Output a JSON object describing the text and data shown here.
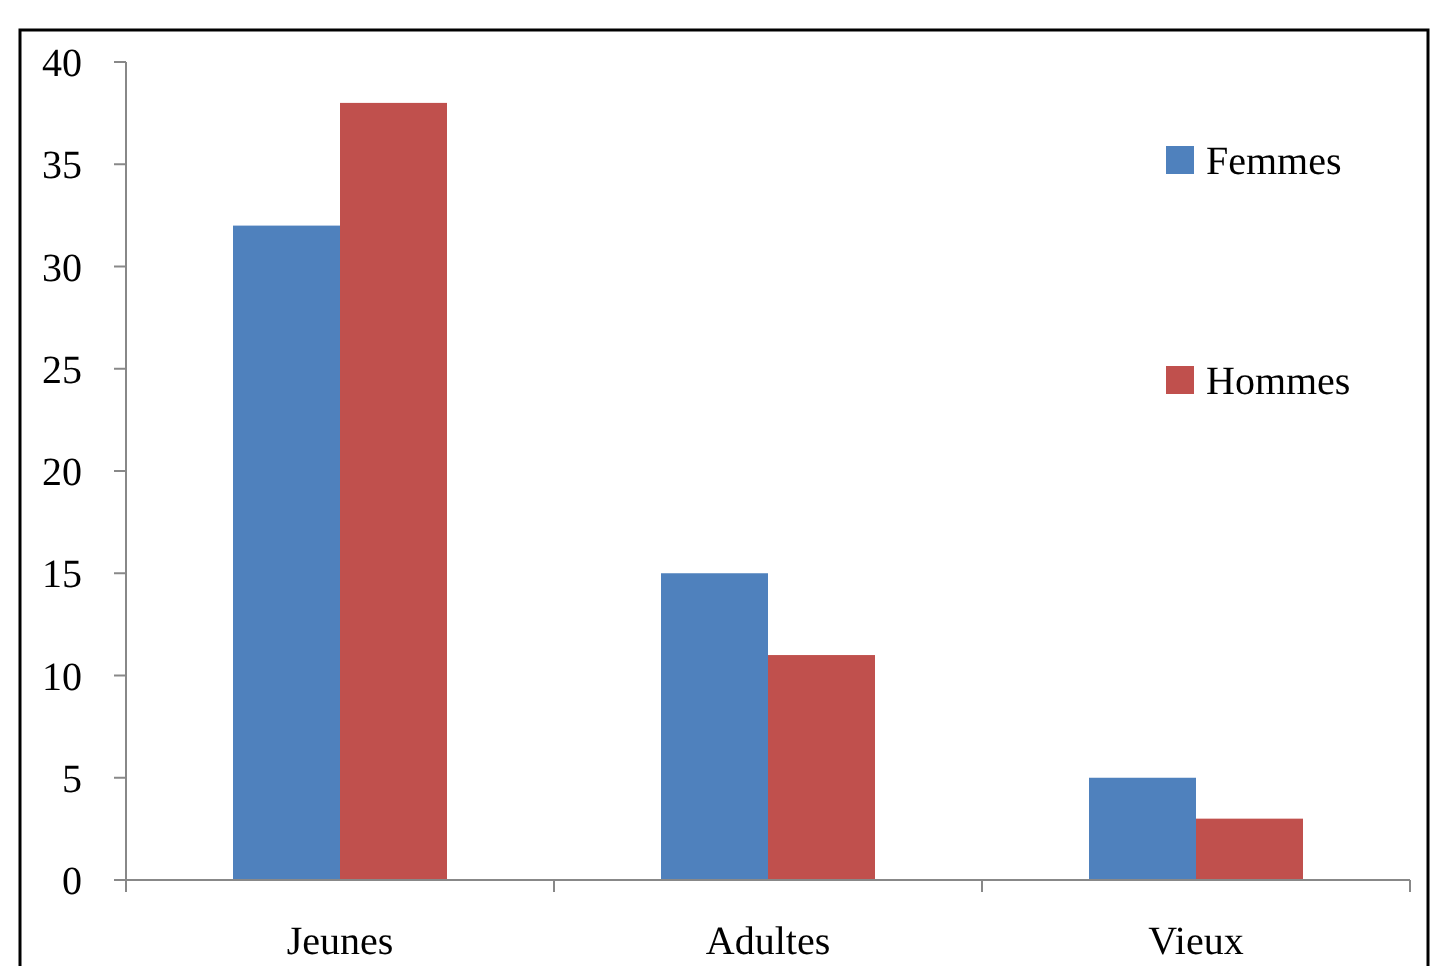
{
  "chart_data": {
    "type": "bar",
    "categories": [
      "Jeunes",
      "Adultes",
      "Vieux"
    ],
    "series": [
      {
        "name": "Femmes",
        "color": "#4f81bd",
        "values": [
          32,
          15,
          5
        ]
      },
      {
        "name": "Hommes",
        "color": "#c0504d",
        "values": [
          38,
          11,
          3
        ]
      }
    ],
    "ylim": [
      0,
      40
    ],
    "yticks": [
      0,
      5,
      10,
      15,
      20,
      25,
      30,
      35,
      40
    ],
    "grid": false,
    "legend": "top right"
  }
}
